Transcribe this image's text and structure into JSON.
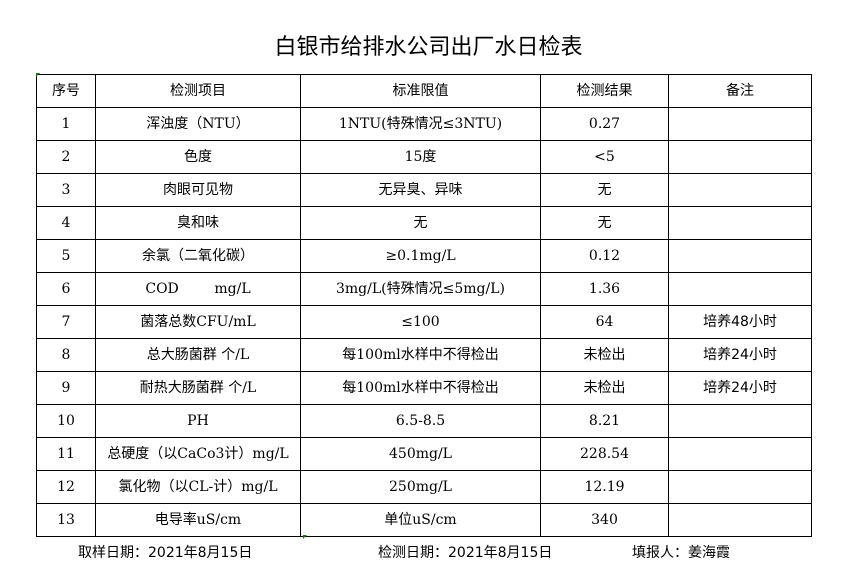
{
  "title": "白银市给排水公司出厂水日检表",
  "headers": [
    "序号",
    "检测项目",
    "标准限值",
    "检测结果",
    "备注"
  ],
  "rows": [
    [
      "1",
      "浑浊度（NTU）",
      "1NTU(特殊情况≤3NTU)",
      "0.27",
      ""
    ],
    [
      "2",
      "色度",
      "15度",
      "<5",
      ""
    ],
    [
      "3",
      "肉眼可见物",
      "无异臭、异味",
      "无",
      ""
    ],
    [
      "4",
      "臭和味",
      "无",
      "无",
      ""
    ],
    [
      "5",
      "余氯（二氧化碳）",
      "≥0.1mg/L",
      "0.12",
      ""
    ],
    [
      "6",
      "COD        mg/L",
      "3mg/L(特殊情况≤5mg/L)",
      "1.36",
      ""
    ],
    [
      "7",
      "菌落总数CFU/mL",
      "≤100",
      "64",
      "培养48小时"
    ],
    [
      "8",
      "总大肠菌群 个/L",
      "每100ml水样中不得检出",
      "未检出",
      "培养24小时"
    ],
    [
      "9",
      "耐热大肠菌群 个/L",
      "每100ml水样中不得检出",
      "未检出",
      "培养24小时"
    ],
    [
      "10",
      "PH",
      "6.5-8.5",
      "8.21",
      ""
    ],
    [
      "11",
      "总硬度（以CaCo3计）mg/L",
      "450mg/L",
      "228.54",
      ""
    ],
    [
      "12",
      "氯化物（以CL-计）mg/L",
      "250mg/L",
      "12.19",
      ""
    ],
    [
      "13",
      "电导率uS/cm",
      "单位uS/cm",
      "340",
      ""
    ]
  ],
  "footer": {
    "sample_date": "取样日期：2021年8月15日",
    "test_date": "检测日期：2021年8月15日",
    "reporter": "填报人：姜海霞"
  }
}
